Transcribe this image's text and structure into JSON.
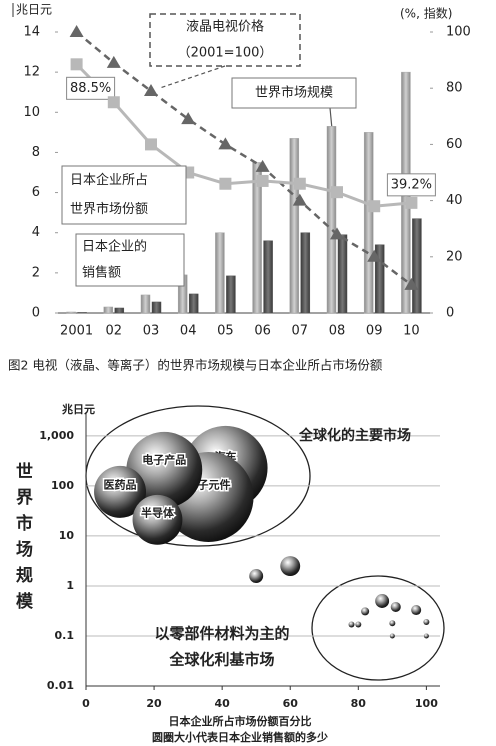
{
  "chart_data": [
    {
      "type": "bar",
      "y_label": "兆日元",
      "y2_label": "(%, 指数)",
      "categories": [
        "2001",
        "02",
        "03",
        "04",
        "05",
        "06",
        "07",
        "08",
        "09",
        "10"
      ],
      "series": [
        {
          "name": "世界市场规模",
          "color": "#a8a8a8",
          "values": [
            0.05,
            0.3,
            0.9,
            1.9,
            4.0,
            7.5,
            8.7,
            9.3,
            9.0,
            12.0
          ]
        },
        {
          "name": [
            "日本企业的",
            "销售额"
          ],
          "color": "#555555",
          "values": [
            0.03,
            0.25,
            0.55,
            0.95,
            1.85,
            3.6,
            4.0,
            3.9,
            3.4,
            4.7
          ]
        },
        {
          "name": [
            "液晶电视价格",
            "（2001=100）"
          ],
          "type": "line",
          "axis": "y2",
          "color": "#666666",
          "marker": "triangle",
          "dashed": true,
          "values": [
            100,
            89,
            79,
            69,
            60,
            52,
            40,
            28,
            20,
            10
          ]
        },
        {
          "name": [
            "日本企业所占",
            "世界市场份额"
          ],
          "type": "line",
          "axis": "y2",
          "color": "#b8b8b8",
          "marker": "square",
          "values": [
            88.5,
            75,
            60,
            50,
            46,
            47,
            46,
            43,
            38,
            39.2
          ],
          "value_labels": [
            "88.5%",
            null,
            null,
            null,
            null,
            null,
            null,
            null,
            null,
            "39.2%"
          ]
        }
      ],
      "ylim": [
        0,
        14
      ],
      "yticks": [
        0,
        2,
        4,
        6,
        8,
        10,
        12,
        14
      ],
      "y2lim": [
        0,
        100
      ],
      "y2ticks": [
        0,
        20,
        40,
        60,
        80,
        100
      ]
    },
    {
      "type": "bubble",
      "y_label": "世界市场规模",
      "y_unit": "兆日元",
      "x_label": "日本企业所占市场份额百分比",
      "note": "圆圈大小代表日本企业销售额的多少",
      "annotations": [
        "全球化的主要市场",
        "以零部件材料为主的",
        "全球化利基市场"
      ],
      "x": [
        41,
        36,
        23,
        10,
        21,
        50,
        60,
        78,
        80,
        82,
        87,
        91,
        97,
        90,
        100,
        90,
        100
      ],
      "values": [
        229,
        60,
        209,
        76,
        21,
        1.58,
        2.5,
        0.17,
        0.17,
        0.31,
        0.5,
        0.38,
        0.33,
        0.18,
        0.19,
        0.1,
        0.1
      ],
      "sizes": [
        196,
        225,
        160,
        75,
        69,
        5.4,
        11,
        1,
        1,
        1.8,
        5.4,
        2.8,
        2.8,
        1,
        1,
        0.7,
        0.7
      ],
      "labels": [
        "汽车",
        "电子元件",
        "电子产品",
        "医药品",
        "半导体",
        null,
        null,
        null,
        null,
        null,
        null,
        null,
        null,
        null,
        null,
        null,
        null
      ],
      "xlim": [
        0,
        104
      ],
      "xticks": [
        0,
        20,
        40,
        60,
        80,
        100
      ],
      "ylim": [
        0.01,
        3000
      ],
      "yscale": "log",
      "yticks": [
        0.01,
        0.1,
        1,
        10,
        100,
        {
          "value": 1000,
          "label": "1,000"
        }
      ],
      "grid": true
    }
  ],
  "caption": "图2 电视（液晶、等离子）的世界市场规模与日本企业所占市场份额"
}
